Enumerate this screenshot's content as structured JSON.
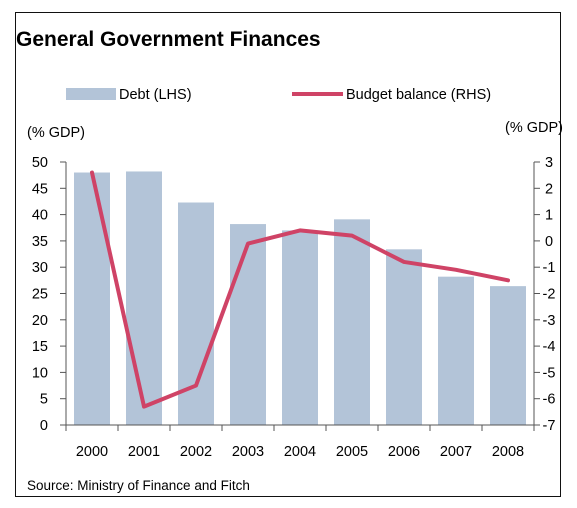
{
  "chart_data": {
    "type": "bar",
    "title": "General Government Finances",
    "categories": [
      "2000",
      "2001",
      "2002",
      "2003",
      "2004",
      "2005",
      "2006",
      "2007",
      "2008"
    ],
    "series": [
      {
        "name": "Debt (LHS)",
        "kind": "bar",
        "axis": "left",
        "values": [
          48,
          48.2,
          42.3,
          38.2,
          37,
          39.1,
          33.4,
          28.2,
          26.4
        ],
        "color": "#b3c4d8"
      },
      {
        "name": "Budget balance (RHS)",
        "kind": "line",
        "axis": "right",
        "values": [
          2.6,
          -6.3,
          -5.5,
          -0.1,
          0.4,
          0.2,
          -0.8,
          -1.1,
          -1.5
        ],
        "color": "#cf4366"
      }
    ],
    "left_axis": {
      "label": "(% GDP)",
      "min": 0,
      "max": 50,
      "step": 5
    },
    "right_axis": {
      "label": "(% GDP)",
      "min": -7,
      "max": 3,
      "step": 1
    },
    "legend_position": "top",
    "source": "Source: Ministry of Finance and Fitch"
  }
}
